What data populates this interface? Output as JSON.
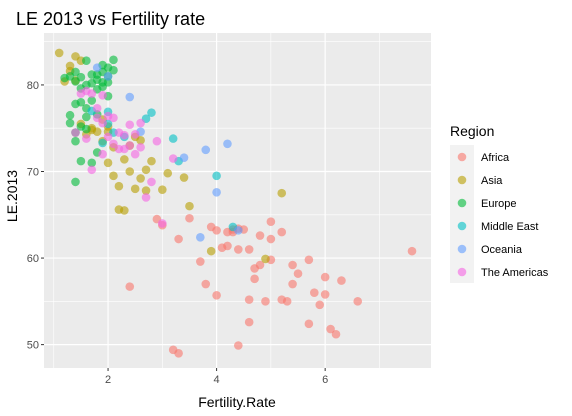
{
  "chart_data": {
    "type": "scatter",
    "title": "LE 2013 vs Fertility rate",
    "xlabel": "Fertility.Rate",
    "ylabel": "LE.2013",
    "xlim": [
      0.82,
      7.95
    ],
    "ylim": [
      47.3,
      86.0
    ],
    "x_ticks": [
      2,
      4,
      6
    ],
    "y_ticks": [
      50,
      60,
      70,
      80
    ],
    "grid": true,
    "legend": {
      "title": "Region",
      "placement": "right",
      "entries": [
        "Africa",
        "Asia",
        "Europe",
        "Middle East",
        "Oceania",
        "The Americas"
      ]
    },
    "colors": {
      "Africa": "#F8766D",
      "Asia": "#B79F00",
      "Europe": "#00BA38",
      "Middle East": "#00BFC4",
      "Oceania": "#619CFF",
      "The Americas": "#F564E3"
    },
    "series": [
      {
        "name": "Africa",
        "points": [
          [
            7.6,
            60.8
          ],
          [
            6.6,
            55.0
          ],
          [
            6.3,
            57.4
          ],
          [
            6.2,
            51.2
          ],
          [
            6.1,
            51.8
          ],
          [
            6.0,
            55.8
          ],
          [
            6.0,
            57.8
          ],
          [
            5.9,
            54.6
          ],
          [
            5.8,
            56.0
          ],
          [
            5.7,
            59.8
          ],
          [
            5.7,
            52.4
          ],
          [
            5.5,
            58.2
          ],
          [
            5.4,
            57.0
          ],
          [
            5.4,
            59.2
          ],
          [
            5.3,
            55.0
          ],
          [
            5.2,
            63.0
          ],
          [
            5.2,
            55.2
          ],
          [
            5.0,
            62.2
          ],
          [
            5.0,
            59.8
          ],
          [
            4.9,
            55.0
          ],
          [
            4.8,
            62.6
          ],
          [
            4.8,
            59.2
          ],
          [
            4.7,
            57.6
          ],
          [
            4.6,
            61.0
          ],
          [
            4.6,
            55.2
          ],
          [
            4.6,
            52.6
          ],
          [
            4.5,
            63.3
          ],
          [
            4.4,
            63.4
          ],
          [
            4.4,
            61.0
          ],
          [
            4.3,
            63.3
          ],
          [
            4.2,
            63.0
          ],
          [
            4.2,
            61.4
          ],
          [
            4.1,
            61.2
          ],
          [
            4.0,
            63.2
          ],
          [
            4.0,
            55.7
          ],
          [
            3.9,
            63.6
          ],
          [
            3.8,
            57.0
          ],
          [
            3.7,
            59.6
          ],
          [
            3.5,
            64.6
          ],
          [
            3.3,
            62.2
          ],
          [
            3.3,
            49.0
          ],
          [
            3.2,
            49.4
          ],
          [
            3.0,
            63.8
          ],
          [
            2.9,
            64.5
          ],
          [
            2.4,
            56.7
          ],
          [
            4.4,
            49.9
          ],
          [
            4.3,
            63.0
          ],
          [
            4.7,
            58.8
          ],
          [
            5.0,
            64.2
          ]
        ]
      },
      {
        "name": "Asia",
        "points": [
          [
            1.1,
            83.7
          ],
          [
            1.2,
            80.4
          ],
          [
            1.3,
            81.6
          ],
          [
            1.4,
            83.3
          ],
          [
            1.5,
            82.8
          ],
          [
            1.3,
            82.2
          ],
          [
            1.4,
            80.5
          ],
          [
            1.5,
            75.5
          ],
          [
            1.6,
            74.3
          ],
          [
            1.7,
            75.0
          ],
          [
            1.8,
            74.6
          ],
          [
            1.9,
            76.0
          ],
          [
            2.0,
            74.6
          ],
          [
            2.0,
            71.0
          ],
          [
            2.1,
            72.8
          ],
          [
            2.1,
            69.5
          ],
          [
            2.2,
            68.3
          ],
          [
            2.2,
            65.6
          ],
          [
            2.3,
            65.5
          ],
          [
            2.3,
            71.4
          ],
          [
            2.4,
            70.0
          ],
          [
            2.4,
            73.0
          ],
          [
            2.5,
            74.0
          ],
          [
            2.5,
            68.0
          ],
          [
            2.6,
            69.2
          ],
          [
            2.6,
            73.6
          ],
          [
            2.7,
            70.2
          ],
          [
            2.7,
            67.8
          ],
          [
            2.8,
            71.2
          ],
          [
            3.0,
            67.9
          ],
          [
            3.1,
            69.8
          ],
          [
            3.4,
            69.3
          ],
          [
            3.5,
            66.0
          ],
          [
            3.9,
            60.8
          ],
          [
            4.9,
            59.9
          ],
          [
            5.2,
            67.5
          ],
          [
            1.9,
            73.5
          ],
          [
            1.7,
            74.8
          ],
          [
            2.0,
            75.2
          ]
        ]
      },
      {
        "name": "Europe",
        "points": [
          [
            1.2,
            80.8
          ],
          [
            1.3,
            81.0
          ],
          [
            1.3,
            76.5
          ],
          [
            1.3,
            75.6
          ],
          [
            1.4,
            81.5
          ],
          [
            1.4,
            80.4
          ],
          [
            1.4,
            77.8
          ],
          [
            1.4,
            73.5
          ],
          [
            1.4,
            68.8
          ],
          [
            1.5,
            80.9
          ],
          [
            1.5,
            79.6
          ],
          [
            1.5,
            75.2
          ],
          [
            1.5,
            71.2
          ],
          [
            1.6,
            82.8
          ],
          [
            1.6,
            80.0
          ],
          [
            1.6,
            74.9
          ],
          [
            1.6,
            76.3
          ],
          [
            1.7,
            81.2
          ],
          [
            1.7,
            80.2
          ],
          [
            1.7,
            78.2
          ],
          [
            1.7,
            71.0
          ],
          [
            1.8,
            80.6
          ],
          [
            1.8,
            79.5
          ],
          [
            1.8,
            81.2
          ],
          [
            1.8,
            76.6
          ],
          [
            1.8,
            72.2
          ],
          [
            1.9,
            82.3
          ],
          [
            1.9,
            81.5
          ],
          [
            1.9,
            80.3
          ],
          [
            1.9,
            79.8
          ],
          [
            2.0,
            81.0
          ],
          [
            2.0,
            80.3
          ],
          [
            2.0,
            82.0
          ],
          [
            2.0,
            78.7
          ],
          [
            2.1,
            82.9
          ],
          [
            2.1,
            81.7
          ],
          [
            1.5,
            78.0
          ],
          [
            1.6,
            77.3
          ],
          [
            1.4,
            74.5
          ]
        ]
      },
      {
        "name": "Middle East",
        "points": [
          [
            1.7,
            77.0
          ],
          [
            1.9,
            73.3
          ],
          [
            2.0,
            76.9
          ],
          [
            2.1,
            74.5
          ],
          [
            2.3,
            74.0
          ],
          [
            2.7,
            76.1
          ],
          [
            2.8,
            76.8
          ],
          [
            3.2,
            73.8
          ],
          [
            3.3,
            71.2
          ],
          [
            4.0,
            69.5
          ],
          [
            4.3,
            63.6
          ],
          [
            2.0,
            75.5
          ]
        ]
      },
      {
        "name": "Oceania",
        "points": [
          [
            1.8,
            82.0
          ],
          [
            2.0,
            81.0
          ],
          [
            2.4,
            78.6
          ],
          [
            2.6,
            74.6
          ],
          [
            3.4,
            71.6
          ],
          [
            3.8,
            72.5
          ],
          [
            4.0,
            67.6
          ],
          [
            4.2,
            73.2
          ],
          [
            3.7,
            62.4
          ],
          [
            4.4,
            63.2
          ]
        ]
      },
      {
        "name": "The Americas",
        "points": [
          [
            1.4,
            74.5
          ],
          [
            1.5,
            79.0
          ],
          [
            1.6,
            79.3
          ],
          [
            1.7,
            79.0
          ],
          [
            1.8,
            77.3
          ],
          [
            1.8,
            76.2
          ],
          [
            1.9,
            78.8
          ],
          [
            1.9,
            75.6
          ],
          [
            2.0,
            74.0
          ],
          [
            2.0,
            76.4
          ],
          [
            2.1,
            73.2
          ],
          [
            2.1,
            76.2
          ],
          [
            2.2,
            74.5
          ],
          [
            2.3,
            74.2
          ],
          [
            2.3,
            72.6
          ],
          [
            2.4,
            75.4
          ],
          [
            2.4,
            73.0
          ],
          [
            2.5,
            74.3
          ],
          [
            2.5,
            72.0
          ],
          [
            2.6,
            72.8
          ],
          [
            2.6,
            75.6
          ],
          [
            2.7,
            67.0
          ],
          [
            2.8,
            68.8
          ],
          [
            3.0,
            64.0
          ],
          [
            3.2,
            71.5
          ],
          [
            1.7,
            70.2
          ],
          [
            2.2,
            72.6
          ],
          [
            2.9,
            73.5
          ],
          [
            1.9,
            72.0
          ],
          [
            1.6,
            73.8
          ]
        ]
      }
    ]
  }
}
